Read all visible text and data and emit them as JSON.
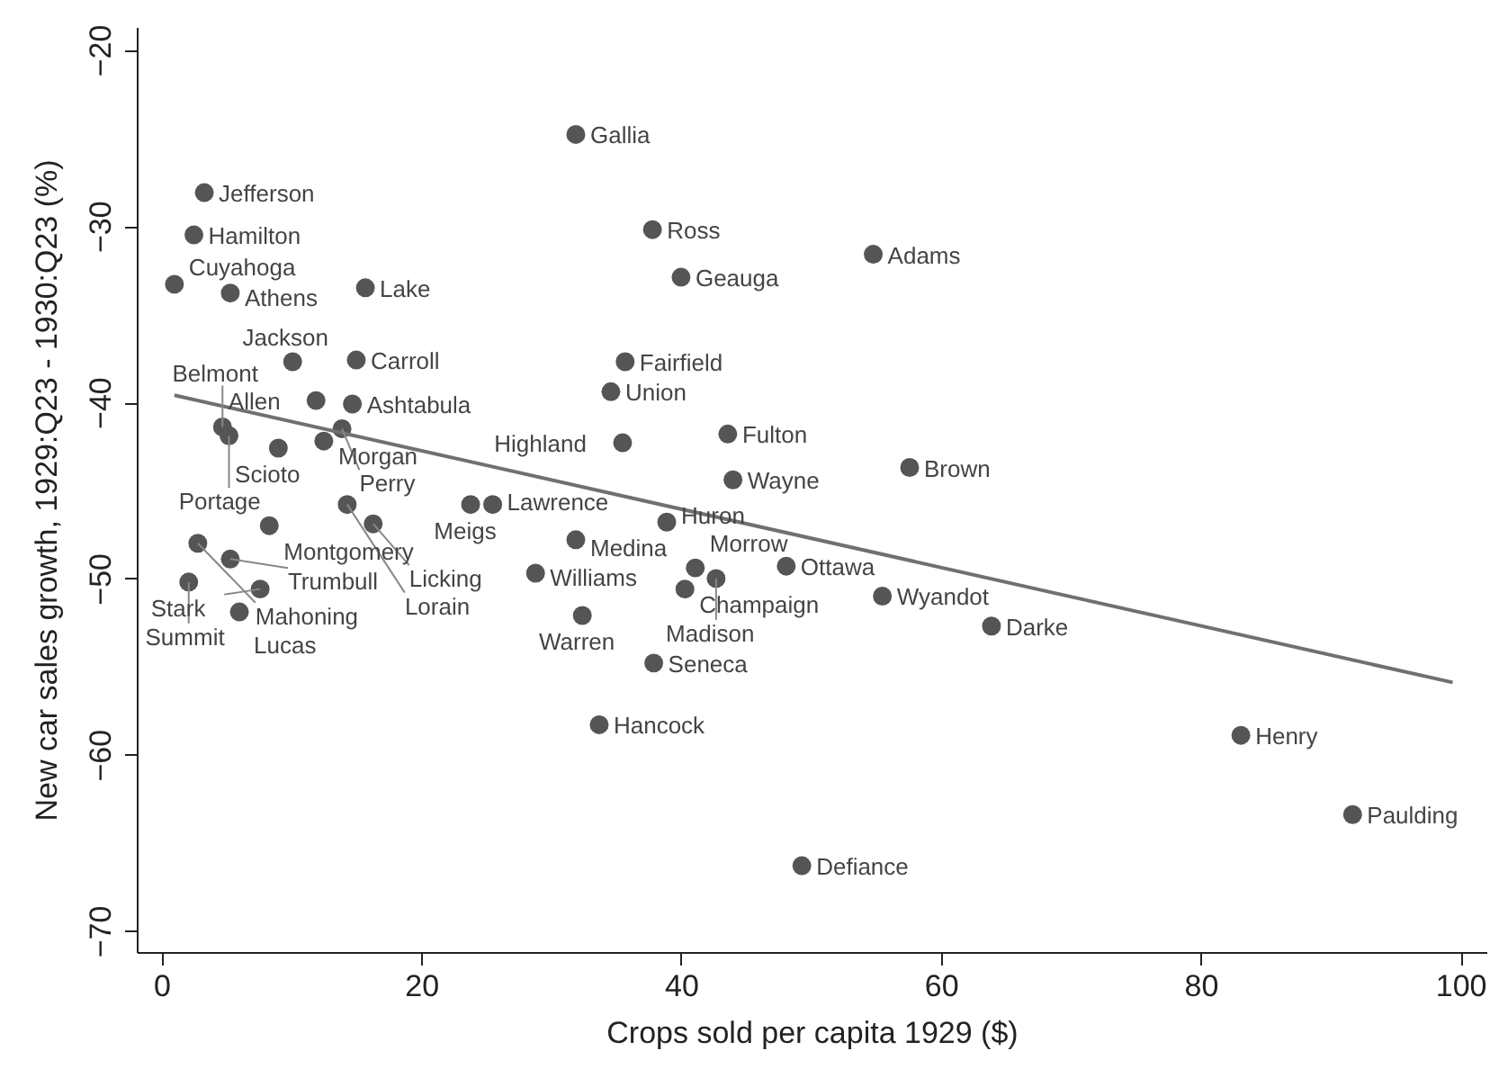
{
  "chart_data": {
    "type": "scatter",
    "xlabel": "Crops sold per capita 1929 ($)",
    "ylabel": "New car sales growth, 1929:Q23 - 1930:Q23 (%)",
    "xlim": [
      -1.9,
      102
    ],
    "ylim": [
      -71.2,
      -18.7
    ],
    "xticks": [
      0,
      20,
      40,
      60,
      80,
      100
    ],
    "yticks": [
      -20,
      -30,
      -40,
      -50,
      -60,
      -70
    ],
    "grid": false,
    "series": [
      {
        "marker": "circle",
        "color": "#555555",
        "x": [
          31.9,
          3.3,
          2.5,
          37.8,
          54.8,
          1.0,
          5.3,
          15.7,
          40.0,
          10.1,
          15.0,
          35.7,
          34.6,
          11.9,
          14.7,
          43.6,
          4.7,
          13.9,
          35.5,
          5.2,
          9.0,
          12.5,
          44.0,
          57.6,
          14.3,
          23.8,
          25.5,
          8.3,
          16.3,
          38.9,
          2.8,
          31.9,
          5.3,
          2.1,
          7.6,
          6.0,
          28.8,
          41.1,
          42.7,
          48.1,
          40.3,
          55.5,
          63.9,
          32.4,
          37.9,
          33.7,
          83.1,
          91.7,
          49.3
        ],
        "values": [
          -24.8,
          -28.1,
          -30.5,
          -30.2,
          -31.6,
          -33.3,
          -33.8,
          -33.5,
          -32.9,
          -37.7,
          -37.6,
          -37.7,
          -39.4,
          -39.9,
          -40.1,
          -41.8,
          -41.4,
          -41.5,
          -42.3,
          -41.9,
          -42.6,
          -42.2,
          -44.4,
          -43.7,
          -45.8,
          -45.8,
          -45.8,
          -47.0,
          -46.9,
          -46.8,
          -48.0,
          -47.8,
          -48.9,
          -50.2,
          -50.6,
          -51.9,
          -49.7,
          -49.4,
          -50.0,
          -49.3,
          -50.6,
          -51.0,
          -52.7,
          -52.1,
          -54.8,
          -58.3,
          -58.9,
          -63.4,
          -66.3
        ]
      },
      {
        "type": "line",
        "line_style": "solid",
        "color": "#707070",
        "x": [
          1.0,
          99.4
        ],
        "values": [
          -39.6,
          -55.9
        ]
      }
    ],
    "annotations": [
      {
        "text": "Gallia",
        "x": 31.9,
        "y": -24.8
      },
      {
        "text": "Jefferson",
        "x": 3.3,
        "y": -28.1
      },
      {
        "text": "Hamilton",
        "x": 2.5,
        "y": -30.5
      },
      {
        "text": "Ross",
        "x": 37.8,
        "y": -30.2
      },
      {
        "text": "Adams",
        "x": 54.8,
        "y": -31.6
      },
      {
        "text": "Cuyahoga",
        "x": 1.0,
        "y": -33.3
      },
      {
        "text": "Athens",
        "x": 5.3,
        "y": -33.8
      },
      {
        "text": "Lake",
        "x": 15.7,
        "y": -33.5
      },
      {
        "text": "Geauga",
        "x": 40.0,
        "y": -32.9
      },
      {
        "text": "Jackson",
        "x": 10.1,
        "y": -37.7
      },
      {
        "text": "Carroll",
        "x": 15.0,
        "y": -37.6
      },
      {
        "text": "Fairfield",
        "x": 35.7,
        "y": -37.7
      },
      {
        "text": "Union",
        "x": 34.6,
        "y": -39.4
      },
      {
        "text": "Allen",
        "x": 11.9,
        "y": -39.9
      },
      {
        "text": "Ashtabula",
        "x": 14.7,
        "y": -40.1
      },
      {
        "text": "Fulton",
        "x": 43.6,
        "y": -41.8
      },
      {
        "text": "Belmont",
        "x": 4.7,
        "y": -41.4
      },
      {
        "text": "Perry",
        "x": 13.9,
        "y": -41.5
      },
      {
        "text": "Highland",
        "x": 35.5,
        "y": -42.3
      },
      {
        "text": "Portage",
        "x": 5.2,
        "y": -41.9
      },
      {
        "text": "Scioto",
        "x": 9.0,
        "y": -42.6
      },
      {
        "text": "Morgan",
        "x": 12.5,
        "y": -42.2
      },
      {
        "text": "Wayne",
        "x": 44.0,
        "y": -44.4
      },
      {
        "text": "Brown",
        "x": 57.6,
        "y": -43.7
      },
      {
        "text": "Lorain",
        "x": 14.3,
        "y": -45.8
      },
      {
        "text": "Meigs",
        "x": 23.8,
        "y": -45.8
      },
      {
        "text": "Lawrence",
        "x": 25.5,
        "y": -45.8
      },
      {
        "text": "Montgomery",
        "x": 8.3,
        "y": -47.0
      },
      {
        "text": "Licking",
        "x": 16.3,
        "y": -46.9
      },
      {
        "text": "Huron",
        "x": 38.9,
        "y": -46.8
      },
      {
        "text": "Mahoning",
        "x": 2.8,
        "y": -48.0
      },
      {
        "text": "Medina",
        "x": 31.9,
        "y": -47.8
      },
      {
        "text": "Trumbull",
        "x": 5.3,
        "y": -48.9
      },
      {
        "text": "Summit",
        "x": 2.1,
        "y": -50.2
      },
      {
        "text": "Stark",
        "x": 7.6,
        "y": -50.6
      },
      {
        "text": "Lucas",
        "x": 6.0,
        "y": -51.9
      },
      {
        "text": "Williams",
        "x": 28.8,
        "y": -49.7
      },
      {
        "text": "Morrow",
        "x": 41.1,
        "y": -49.4
      },
      {
        "text": "Madison",
        "x": 42.7,
        "y": -50.0
      },
      {
        "text": "Ottawa",
        "x": 48.1,
        "y": -49.3
      },
      {
        "text": "Champaign",
        "x": 40.3,
        "y": -50.6
      },
      {
        "text": "Wyandot",
        "x": 55.5,
        "y": -51.0
      },
      {
        "text": "Darke",
        "x": 63.9,
        "y": -52.7
      },
      {
        "text": "Warren",
        "x": 32.4,
        "y": -52.1
      },
      {
        "text": "Seneca",
        "x": 37.9,
        "y": -54.8
      },
      {
        "text": "Hancock",
        "x": 33.7,
        "y": -58.3
      },
      {
        "text": "Henry",
        "x": 83.1,
        "y": -58.9
      },
      {
        "text": "Paulding",
        "x": 91.7,
        "y": -63.4
      },
      {
        "text": "Defiance",
        "x": 49.3,
        "y": -66.3
      }
    ]
  }
}
